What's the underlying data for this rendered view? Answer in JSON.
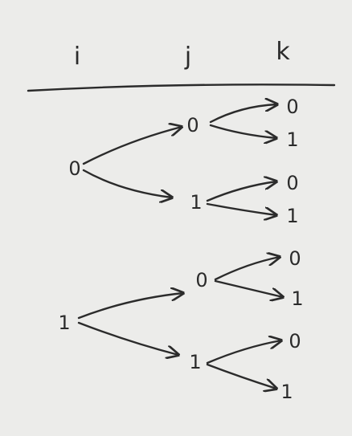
{
  "header": {
    "col_i": "i",
    "col_j": "j",
    "col_k": "k"
  },
  "tree": {
    "i_values": [
      "0",
      "1"
    ],
    "j_values": [
      "0",
      "1",
      "0",
      "1"
    ],
    "k_values": [
      "0",
      "1",
      "0",
      "1",
      "0",
      "1",
      "0",
      "1"
    ]
  },
  "colors": {
    "ink": "#2b2b2b",
    "paper": "#ececea"
  }
}
